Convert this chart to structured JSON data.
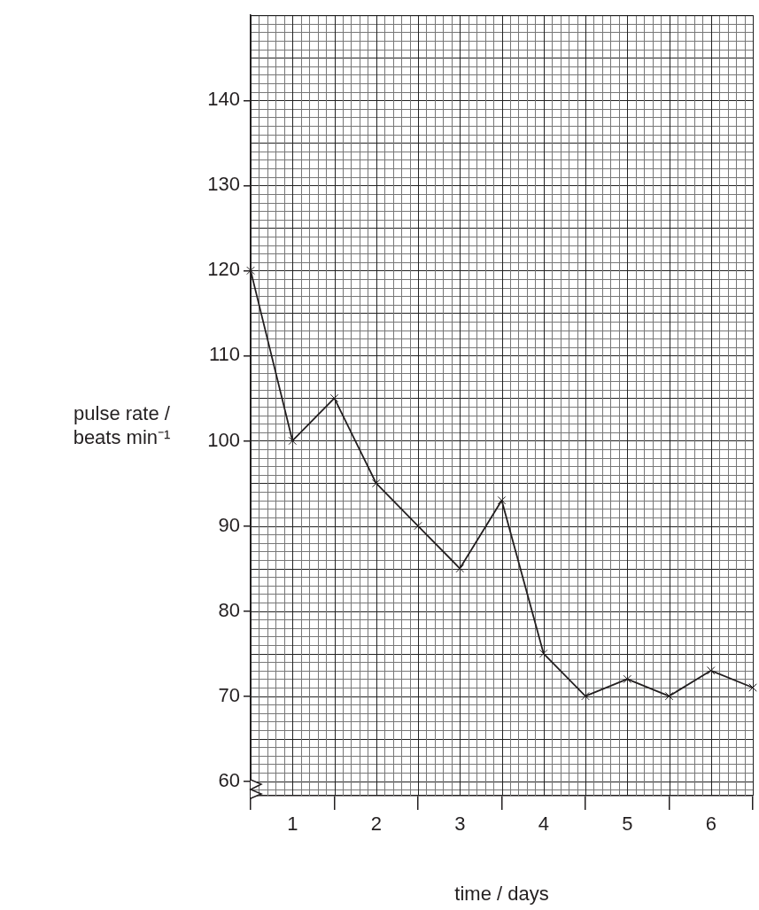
{
  "chart_data": {
    "type": "line",
    "xlabel": "time / days",
    "ylabel": "pulse rate / beats min⁻¹",
    "x": [
      0,
      0.5,
      1,
      1.5,
      2,
      2.5,
      3,
      3.5,
      4,
      4.5,
      5,
      5.5,
      6
    ],
    "series": [
      {
        "color": "#231f20",
        "values": [
          120,
          100,
          105,
          95,
          90,
          85,
          93,
          75,
          70,
          72,
          70,
          73,
          71
        ]
      }
    ],
    "xlim": [
      0,
      6
    ],
    "xticks": [
      {
        "value": 0,
        "label": null
      },
      {
        "value": 0.5,
        "label": "1"
      },
      {
        "value": 1,
        "label": null
      },
      {
        "value": 1.5,
        "label": "2"
      },
      {
        "value": 2,
        "label": null
      },
      {
        "value": 2.5,
        "label": "3"
      },
      {
        "value": 3,
        "label": null
      },
      {
        "value": 3.5,
        "label": "4"
      },
      {
        "value": 4,
        "label": null
      },
      {
        "value": 4.5,
        "label": "5"
      },
      {
        "value": 5,
        "label": null
      },
      {
        "value": 5.5,
        "label": "6"
      },
      {
        "value": 6,
        "label": null
      }
    ],
    "ylim": [
      58.3,
      150
    ],
    "yticks": [
      60,
      70,
      80,
      90,
      100,
      110,
      120,
      130,
      140
    ],
    "grid": true,
    "marker": "cross",
    "line_style": "solid",
    "legend": false
  }
}
